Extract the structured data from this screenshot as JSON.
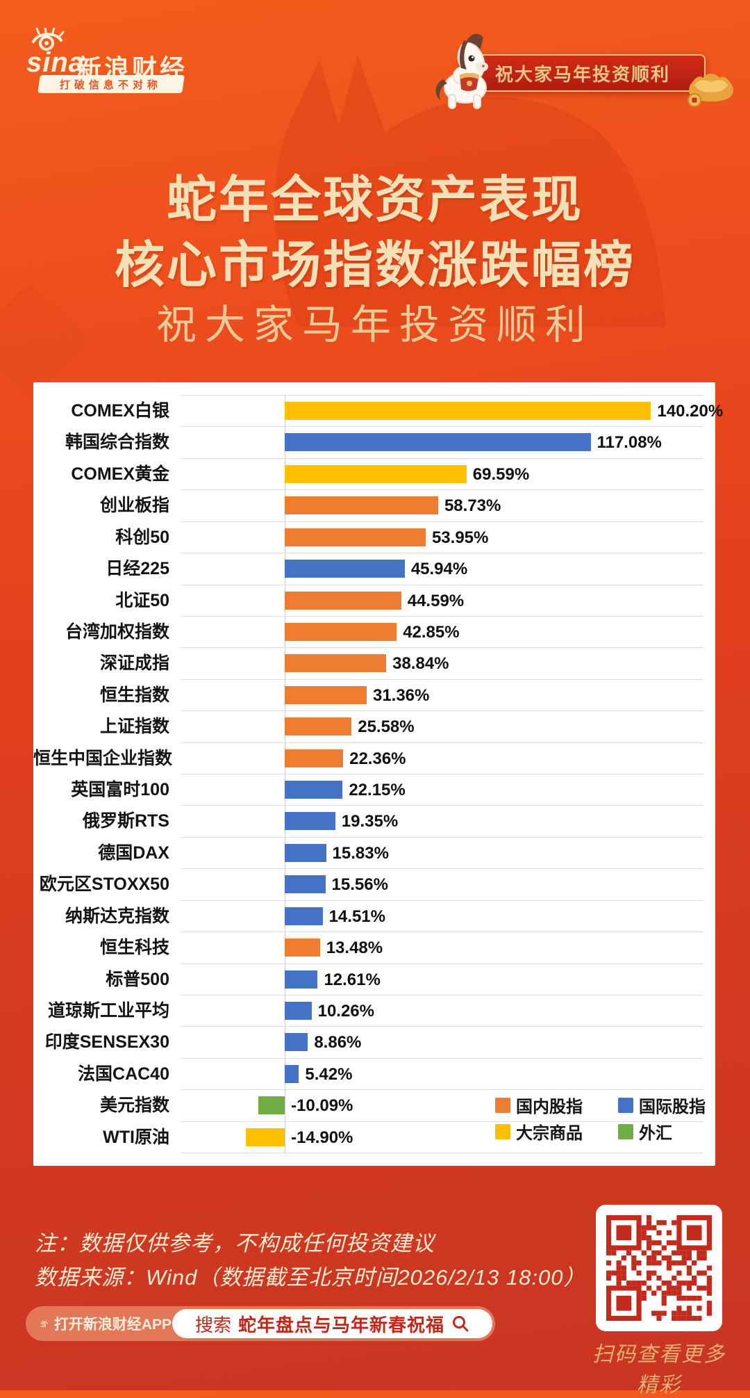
{
  "header": {
    "logo": {
      "brand": "sina",
      "brand_cn": "新浪财经",
      "tagline": "打破信息不对称"
    },
    "banner": {
      "text": "祝大家马年投资顺利"
    }
  },
  "title": {
    "line1": "蛇年全球资产表现",
    "line2": "核心市场指数涨跌幅榜",
    "subtitle": "祝大家马年投资顺利"
  },
  "chart_data": {
    "type": "bar",
    "orientation": "horizontal",
    "title": "蛇年全球资产表现 核心市场指数涨跌幅榜",
    "value_unit": "percent",
    "value_range": [
      -14.9,
      140.2
    ],
    "grid": false,
    "zero_line": true,
    "legend_position": "bottom-right-inside",
    "categories": [
      "COMEX白银",
      "韩国综合指数",
      "COMEX黄金",
      "创业板指",
      "科创50",
      "日经225",
      "北证50",
      "台湾加权指数",
      "深证成指",
      "恒生指数",
      "上证指数",
      "恒生中国企业指数",
      "英国富时100",
      "俄罗斯RTS",
      "德国DAX",
      "欧元区STOXX50",
      "纳斯达克指数",
      "恒生科技",
      "标普500",
      "道琼斯工业平均",
      "印度SENSEX30",
      "法国CAC40",
      "美元指数",
      "WTI原油"
    ],
    "values": [
      140.2,
      117.08,
      69.59,
      58.73,
      53.95,
      45.94,
      44.59,
      42.85,
      38.84,
      31.36,
      25.58,
      22.36,
      22.15,
      19.35,
      15.83,
      15.56,
      14.51,
      13.48,
      12.61,
      10.26,
      8.86,
      5.42,
      -10.09,
      -14.9
    ],
    "items": [
      {
        "label": "COMEX白银",
        "value": 140.2,
        "display": "140.20%",
        "group": "commodity"
      },
      {
        "label": "韩国综合指数",
        "value": 117.08,
        "display": "117.08%",
        "group": "international"
      },
      {
        "label": "COMEX黄金",
        "value": 69.59,
        "display": "69.59%",
        "group": "commodity"
      },
      {
        "label": "创业板指",
        "value": 58.73,
        "display": "58.73%",
        "group": "domestic"
      },
      {
        "label": "科创50",
        "value": 53.95,
        "display": "53.95%",
        "group": "domestic"
      },
      {
        "label": "日经225",
        "value": 45.94,
        "display": "45.94%",
        "group": "international"
      },
      {
        "label": "北证50",
        "value": 44.59,
        "display": "44.59%",
        "group": "domestic"
      },
      {
        "label": "台湾加权指数",
        "value": 42.85,
        "display": "42.85%",
        "group": "domestic"
      },
      {
        "label": "深证成指",
        "value": 38.84,
        "display": "38.84%",
        "group": "domestic"
      },
      {
        "label": "恒生指数",
        "value": 31.36,
        "display": "31.36%",
        "group": "domestic"
      },
      {
        "label": "上证指数",
        "value": 25.58,
        "display": "25.58%",
        "group": "domestic"
      },
      {
        "label": "恒生中国企业指数",
        "value": 22.36,
        "display": "22.36%",
        "group": "domestic"
      },
      {
        "label": "英国富时100",
        "value": 22.15,
        "display": "22.15%",
        "group": "international"
      },
      {
        "label": "俄罗斯RTS",
        "value": 19.35,
        "display": "19.35%",
        "group": "international"
      },
      {
        "label": "德国DAX",
        "value": 15.83,
        "display": "15.83%",
        "group": "international"
      },
      {
        "label": "欧元区STOXX50",
        "value": 15.56,
        "display": "15.56%",
        "group": "international"
      },
      {
        "label": "纳斯达克指数",
        "value": 14.51,
        "display": "14.51%",
        "group": "international"
      },
      {
        "label": "恒生科技",
        "value": 13.48,
        "display": "13.48%",
        "group": "domestic"
      },
      {
        "label": "标普500",
        "value": 12.61,
        "display": "12.61%",
        "group": "international"
      },
      {
        "label": "道琼斯工业平均",
        "value": 10.26,
        "display": "10.26%",
        "group": "international"
      },
      {
        "label": "印度SENSEX30",
        "value": 8.86,
        "display": "8.86%",
        "group": "international"
      },
      {
        "label": "法国CAC40",
        "value": 5.42,
        "display": "5.42%",
        "group": "international"
      },
      {
        "label": "美元指数",
        "value": -10.09,
        "display": "-10.09%",
        "group": "fx"
      },
      {
        "label": "WTI原油",
        "value": -14.9,
        "display": "-14.90%",
        "group": "commodity"
      }
    ],
    "groups": {
      "domestic": {
        "label": "国内股指",
        "color": "#ED7D31"
      },
      "international": {
        "label": "国际股指",
        "color": "#4472C4"
      },
      "commodity": {
        "label": "大宗商品",
        "color": "#FFC000"
      },
      "fx": {
        "label": "外汇",
        "color": "#70AD47"
      }
    },
    "legend": [
      {
        "label": "国内股指",
        "group": "domestic"
      },
      {
        "label": "国际股指",
        "group": "international"
      },
      {
        "label": "大宗商品",
        "group": "commodity"
      },
      {
        "label": "外汇",
        "group": "fx"
      }
    ]
  },
  "footer": {
    "note": "注：数据仅供参考，不构成任何投资建议",
    "source": "数据来源：Wind（数据截至北京时间2026/2/13 18:00）",
    "app_bar": {
      "open_label": "打开新浪财经APP",
      "search_prefix": "搜索",
      "search_query": "蛇年盘点与马年新春祝福"
    },
    "qr_caption": "扫码查看更多精彩"
  }
}
